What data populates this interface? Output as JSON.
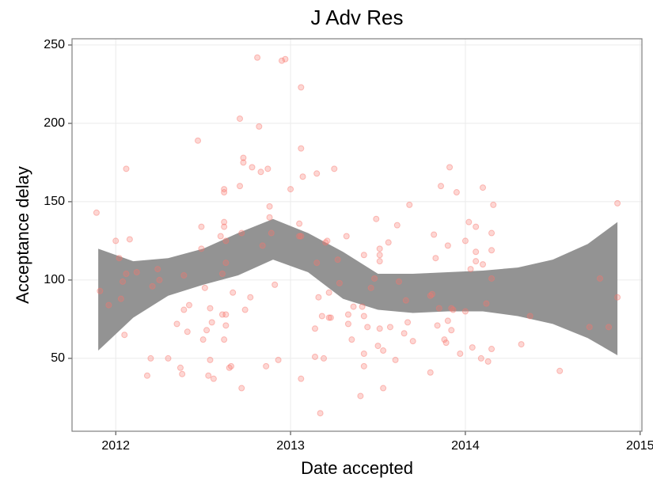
{
  "chart_data": {
    "type": "scatter",
    "title": "J Adv Res",
    "x_label": "Date accepted",
    "y_label": "Acceptance delay",
    "color": "#f8766d",
    "x": [
      2011.89,
      2011.91,
      2011.96,
      2012.0,
      2012.02,
      2012.03,
      2012.04,
      2012.05,
      2012.06,
      2012.06,
      2012.08,
      2012.12,
      2012.18,
      2012.2,
      2012.21,
      2012.24,
      2012.25,
      2012.3,
      2012.35,
      2012.37,
      2012.38,
      2012.39,
      2012.39,
      2012.41,
      2012.42,
      2012.47,
      2012.49,
      2012.49,
      2012.5,
      2012.51,
      2012.52,
      2012.53,
      2012.54,
      2012.54,
      2012.55,
      2012.56,
      2012.6,
      2012.61,
      2012.61,
      2012.62,
      2012.62,
      2012.62,
      2012.62,
      2012.63,
      2012.63,
      2012.63,
      2012.62,
      2012.63,
      2012.65,
      2012.66,
      2012.67,
      2012.71,
      2012.71,
      2012.72,
      2012.72,
      2012.73,
      2012.73,
      2012.74,
      2012.77,
      2012.78,
      2012.81,
      2012.82,
      2012.83,
      2012.84,
      2012.86,
      2012.87,
      2012.88,
      2012.88,
      2012.89,
      2012.91,
      2012.93,
      2012.95,
      2012.97,
      2013.0,
      2013.05,
      2013.05,
      2013.06,
      2013.06,
      2013.06,
      2013.06,
      2013.07,
      2013.14,
      2013.14,
      2013.15,
      2013.15,
      2013.16,
      2013.17,
      2013.18,
      2013.19,
      2013.2,
      2013.21,
      2013.22,
      2013.22,
      2013.23,
      2013.25,
      2013.27,
      2013.28,
      2013.32,
      2013.33,
      2013.33,
      2013.35,
      2013.36,
      2013.4,
      2013.41,
      2013.42,
      2013.42,
      2013.42,
      2013.42,
      2013.44,
      2013.46,
      2013.48,
      2013.49,
      2013.5,
      2013.51,
      2013.51,
      2013.51,
      2013.51,
      2013.53,
      2013.53,
      2013.56,
      2013.57,
      2013.6,
      2013.61,
      2013.62,
      2013.65,
      2013.66,
      2013.67,
      2013.68,
      2013.7,
      2013.8,
      2013.8,
      2013.81,
      2013.82,
      2013.83,
      2013.84,
      2013.85,
      2013.86,
      2013.88,
      2013.89,
      2013.9,
      2013.9,
      2013.91,
      2013.92,
      2013.92,
      2013.93,
      2013.95,
      2013.97,
      2014.0,
      2014.0,
      2014.02,
      2014.03,
      2014.04,
      2014.06,
      2014.06,
      2014.06,
      2014.09,
      2014.1,
      2014.1,
      2014.12,
      2014.13,
      2014.15,
      2014.15,
      2014.15,
      2014.15,
      2014.16,
      2014.32,
      2014.37,
      2014.54,
      2014.71,
      2014.77,
      2014.82,
      2014.87,
      2014.87
    ],
    "values": [
      143,
      93,
      84,
      125,
      114,
      88,
      99,
      65,
      171,
      104,
      126,
      105,
      39,
      50,
      96,
      107,
      100,
      50,
      72,
      44,
      40,
      81,
      103,
      67,
      84,
      189,
      134,
      120,
      62,
      95,
      68,
      39,
      82,
      49,
      73,
      37,
      128,
      78,
      104,
      158,
      156,
      137,
      134,
      125,
      111,
      78,
      62,
      71,
      44,
      45,
      92,
      203,
      160,
      31,
      130,
      175,
      178,
      81,
      89,
      172,
      242,
      198,
      169,
      122,
      45,
      171,
      147,
      140,
      130,
      97,
      49,
      240,
      241,
      158,
      128,
      136,
      37,
      223,
      184,
      128,
      166,
      69,
      51,
      168,
      111,
      89,
      15,
      77,
      50,
      124,
      125,
      92,
      76,
      76,
      171,
      113,
      98,
      128,
      72,
      78,
      62,
      83,
      26,
      83,
      45,
      77,
      116,
      53,
      70,
      95,
      101,
      139,
      58,
      120,
      112,
      116,
      69,
      31,
      55,
      124,
      70,
      49,
      135,
      99,
      66,
      87,
      73,
      148,
      61,
      41,
      90,
      91,
      129,
      114,
      71,
      82,
      160,
      62,
      60,
      122,
      74,
      172,
      68,
      82,
      81,
      156,
      53,
      80,
      125,
      137,
      107,
      57,
      112,
      134,
      118,
      50,
      159,
      110,
      85,
      48,
      119,
      130,
      101,
      56,
      148,
      59,
      77,
      42,
      70,
      101,
      70,
      149,
      89
    ],
    "band": {
      "color": "#939393",
      "x": [
        2011.9,
        2012.1,
        2012.3,
        2012.5,
        2012.7,
        2012.9,
        2013.1,
        2013.3,
        2013.5,
        2013.7,
        2013.9,
        2014.1,
        2014.3,
        2014.5,
        2014.7,
        2014.87
      ],
      "upper": [
        120,
        112,
        114,
        120,
        130,
        139,
        130,
        118,
        104,
        104,
        105,
        106,
        108,
        113,
        123,
        137
      ],
      "lower": [
        55,
        76,
        90,
        97,
        103,
        113,
        105,
        88,
        81,
        79,
        80,
        80,
        77,
        72,
        63,
        52
      ]
    },
    "xlim": [
      2011.75,
      2015.01
    ],
    "ylim": [
      3.5,
      254
    ],
    "xticks": [
      2012,
      2013,
      2014,
      2015
    ],
    "yticks": [
      50,
      100,
      150,
      200,
      250
    ],
    "grid": true
  }
}
